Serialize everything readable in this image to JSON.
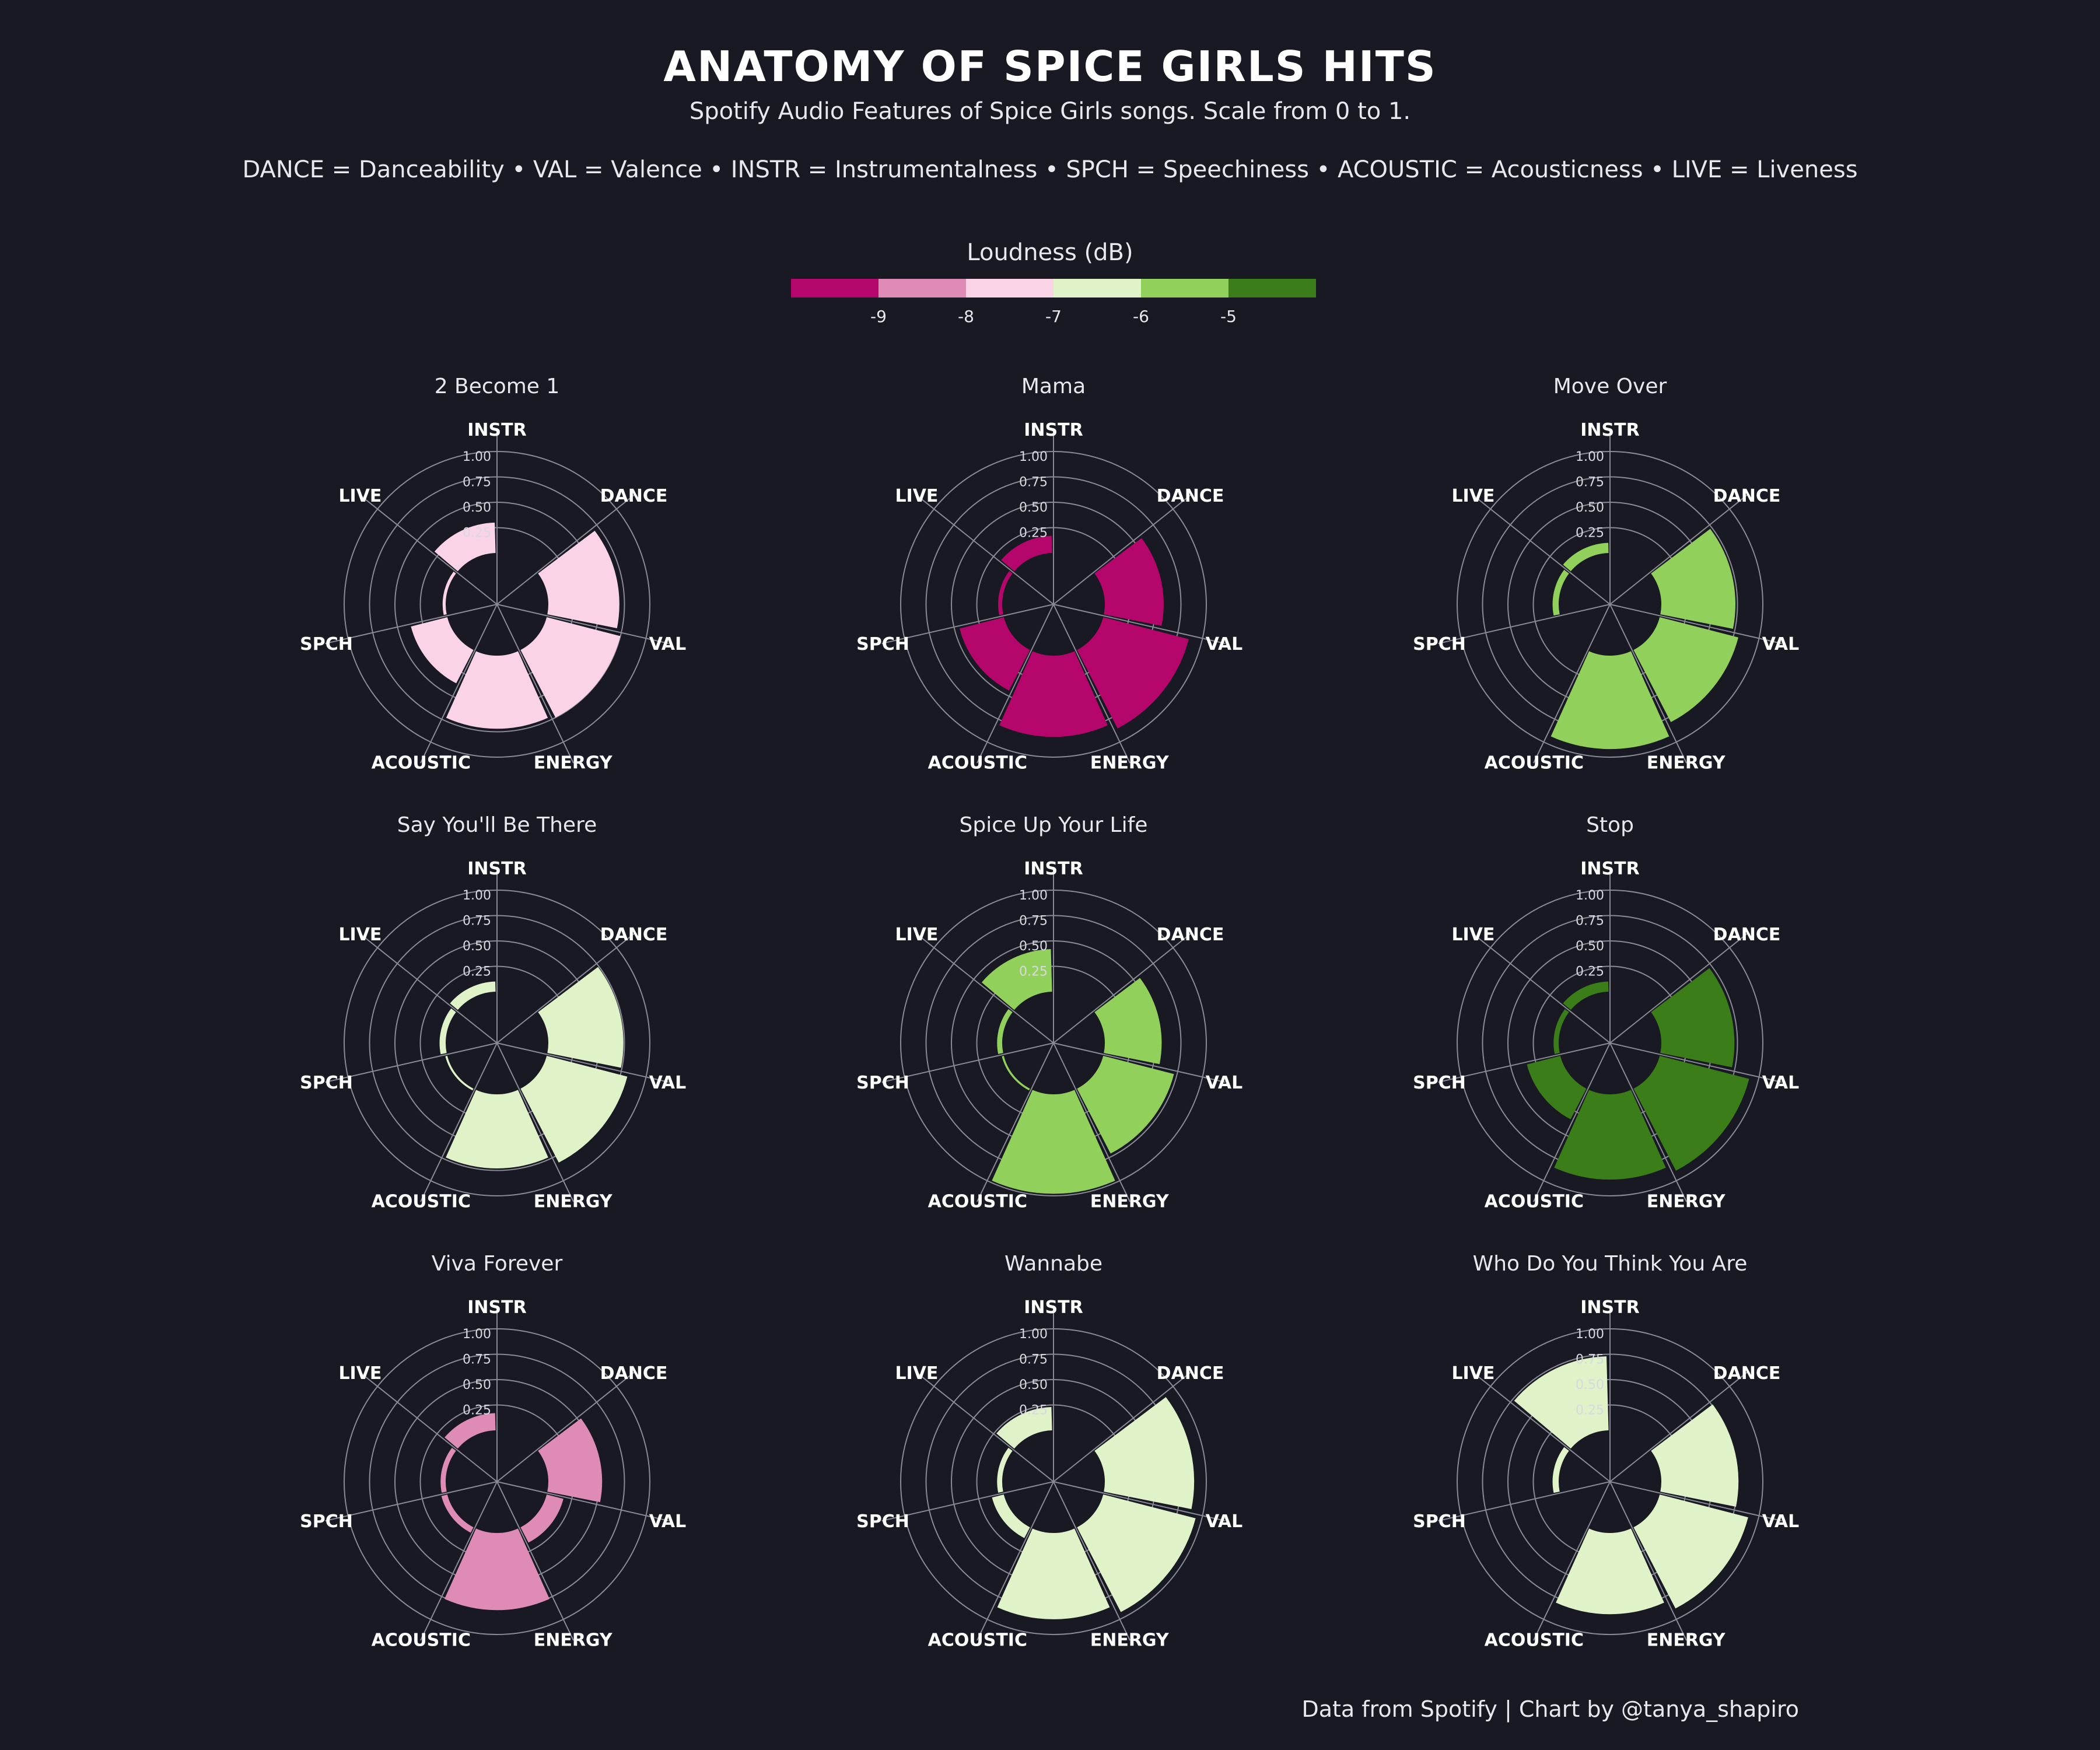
{
  "title": "ANATOMY OF SPICE GIRLS HITS",
  "subtitle": "Spotify Audio Features of Spice Girls songs. Scale from 0 to 1.",
  "abbreviations": "DANCE = Danceability  •  VAL = Valence  •  INSTR = Instrumentalness  •  SPCH = Speechiness  •  ACOUSTIC = Acousticness  •  LIVE = Liveness",
  "legend": {
    "title": "Loudness (dB)",
    "colors": [
      "#b5076b",
      "#df8bb8",
      "#fbd3e7",
      "#dff2c8",
      "#91d05a",
      "#3b7d19"
    ],
    "ticks": [
      "-9",
      "-8",
      "-7",
      "-6",
      "-5"
    ]
  },
  "caption": "Data from Spotify | Chart by @tanya_shapiro",
  "chart_data": {
    "type": "polar-bar",
    "axis_labels": [
      "INSTR",
      "DANCE",
      "VAL",
      "ENERGY",
      "ACOUSTIC",
      "SPCH",
      "LIVE"
    ],
    "radial_ticks": [
      "0.25",
      "0.50",
      "0.75",
      "1.00"
    ],
    "rlim": [
      0,
      1
    ],
    "panels": [
      {
        "name": "2 Become 1",
        "loudness_color": "#fbd3e7",
        "values": [
          0.0,
          0.7,
          0.75,
          0.72,
          0.37,
          0.03,
          0.3
        ]
      },
      {
        "name": "Mama",
        "loudness_color": "#b5076b",
        "values": [
          0.0,
          0.58,
          0.87,
          0.8,
          0.45,
          0.04,
          0.17
        ]
      },
      {
        "name": "Move Over",
        "loudness_color": "#91d05a",
        "values": [
          0.0,
          0.73,
          0.8,
          0.92,
          0.0,
          0.06,
          0.1
        ]
      },
      {
        "name": "Say You'll Be There",
        "loudness_color": "#dff2c8",
        "values": [
          0.0,
          0.74,
          0.82,
          0.73,
          0.02,
          0.06,
          0.1
        ]
      },
      {
        "name": "Spice Up Your Life",
        "loudness_color": "#91d05a",
        "values": [
          0.0,
          0.56,
          0.72,
          0.98,
          0.02,
          0.05,
          0.42
        ]
      },
      {
        "name": "Stop",
        "loudness_color": "#3b7d19",
        "values": [
          0.0,
          0.72,
          0.91,
          0.84,
          0.34,
          0.05,
          0.1
        ]
      },
      {
        "name": "Viva Forever",
        "loudness_color": "#df8bb8",
        "values": [
          0.0,
          0.53,
          0.17,
          0.76,
          0.06,
          0.05,
          0.17
        ]
      },
      {
        "name": "Wannabe",
        "loudness_color": "#dff2c8",
        "values": [
          0.0,
          0.88,
          0.94,
          0.85,
          0.12,
          0.05,
          0.23
        ]
      },
      {
        "name": "Who Do You Think You Are",
        "loudness_color": "#dff2c8",
        "values": [
          0.0,
          0.76,
          0.9,
          0.8,
          0.0,
          0.06,
          0.73
        ]
      }
    ]
  }
}
